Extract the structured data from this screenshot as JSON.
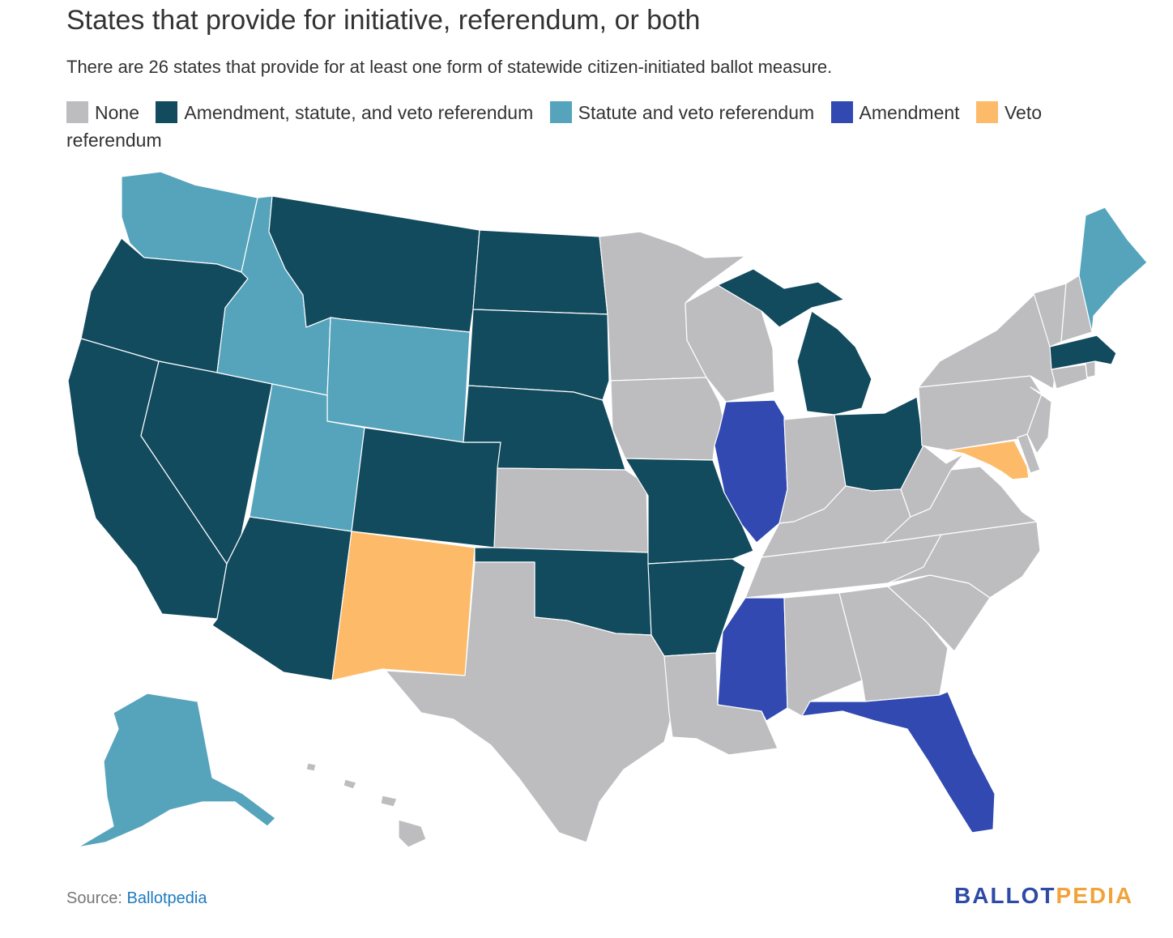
{
  "title": "States that provide for initiative, referendum, or both",
  "subtitle": "There are 26 states that provide for at least one form of statewide citizen-initiated ballot measure.",
  "legend": [
    {
      "label": "None",
      "color": "#bdbcbf"
    },
    {
      "label": "Amendment, statute, and veto referendum",
      "color": "#124a5e"
    },
    {
      "label": "Statute and veto referendum",
      "color": "#55a4bc"
    },
    {
      "label": "Amendment",
      "color": "#3149b1"
    },
    {
      "label": "Veto referendum",
      "color": "#fdbb6a"
    }
  ],
  "source": {
    "prefix": "Source: ",
    "link": "Ballotpedia"
  },
  "logo": {
    "part1": "BALLOT",
    "part2": "PEDIA"
  },
  "map_data": {
    "categories": {
      "Amendment, statute, and veto referendum": [
        "Oregon",
        "California",
        "Nevada",
        "Arizona",
        "Montana",
        "North Dakota",
        "South Dakota",
        "Nebraska",
        "Colorado",
        "Oklahoma",
        "Missouri",
        "Arkansas",
        "Michigan",
        "Ohio",
        "Massachusetts"
      ],
      "Statute and veto referendum": [
        "Washington",
        "Idaho",
        "Wyoming",
        "Utah",
        "Alaska",
        "Maine"
      ],
      "Amendment": [
        "Illinois",
        "Mississippi",
        "Florida"
      ],
      "Veto referendum": [
        "New Mexico",
        "Maryland"
      ],
      "None": [
        "Texas",
        "Kansas",
        "Minnesota",
        "Iowa",
        "Wisconsin",
        "Louisiana",
        "Alabama",
        "Georgia",
        "Tennessee",
        "Kentucky",
        "Indiana",
        "South Carolina",
        "North Carolina",
        "Virginia",
        "West Virginia",
        "Pennsylvania",
        "New York",
        "New Jersey",
        "Delaware",
        "Connecticut",
        "Rhode Island",
        "Vermont",
        "New Hampshire",
        "Hawaii"
      ]
    }
  }
}
